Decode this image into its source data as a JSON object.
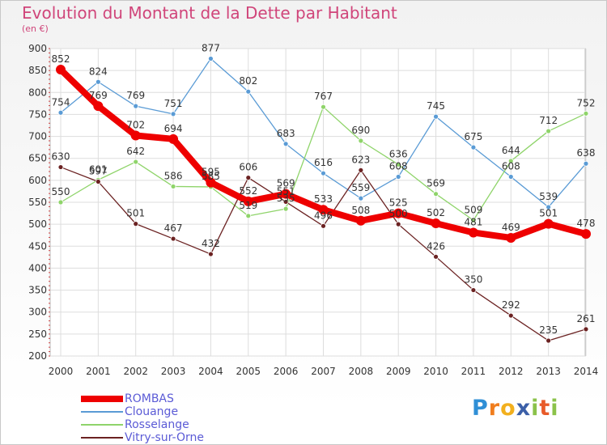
{
  "header": {
    "title": "Evolution du Montant de la Dette par Habitant",
    "subtitle": "(en €)"
  },
  "logo": {
    "letters": [
      "P",
      "r",
      "o",
      "x",
      "i",
      "t",
      "i"
    ],
    "colors": [
      "#2f8fd6",
      "#f07d1e",
      "#f2b01e",
      "#3b5fa8",
      "#8bc24a",
      "#e85b2a",
      "#8bc24a"
    ]
  },
  "chart_data": {
    "type": "line",
    "title": "Evolution du Montant de la Dette par Habitant",
    "subtitle": "(en €)",
    "xlabel": "",
    "ylabel": "",
    "x": [
      "2000",
      "2001",
      "2002",
      "2003",
      "2004",
      "2005",
      "2006",
      "2007",
      "2008",
      "2009",
      "2010",
      "2011",
      "2012",
      "2013",
      "2014"
    ],
    "ylim": [
      200,
      900
    ],
    "yticks": [
      200,
      250,
      300,
      350,
      400,
      450,
      500,
      550,
      600,
      650,
      700,
      750,
      800,
      850,
      900
    ],
    "grid": true,
    "legend_position": "bottom-left",
    "series": [
      {
        "name": "Clouange",
        "color": "#5a9bd5",
        "values": [
          754,
          824,
          769,
          751,
          877,
          802,
          683,
          616,
          559,
          608,
          745,
          675,
          608,
          539,
          638
        ]
      },
      {
        "name": "Rosselange",
        "color": "#8fd46a",
        "values": [
          550,
          601,
          642,
          586,
          585,
          519,
          535,
          767,
          690,
          636,
          569,
          509,
          644,
          712,
          752
        ]
      },
      {
        "name": "Vitry-sur-Orne",
        "color": "#6b2222",
        "values": [
          630,
          597,
          501,
          467,
          432,
          606,
          551,
          496,
          623,
          500,
          426,
          350,
          292,
          235,
          261
        ]
      },
      {
        "name": "ROMBAS",
        "color": "#ee0000",
        "values": [
          852,
          769,
          702,
          694,
          595,
          552,
          569,
          533,
          508,
          525,
          502,
          481,
          469,
          501,
          478
        ]
      }
    ]
  }
}
